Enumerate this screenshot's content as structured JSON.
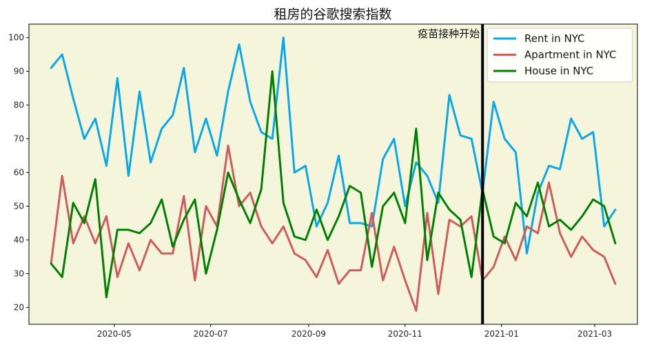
{
  "chart_data": {
    "type": "line",
    "title": "租房的谷歌搜索指数",
    "xlabel": "",
    "ylabel": "",
    "x_start": "2020-03-22",
    "x_step_days": 7,
    "xlim": [
      "2020-03-08",
      "2021-03-28"
    ],
    "ylim": [
      15,
      104
    ],
    "yticks": [
      20,
      30,
      40,
      50,
      60,
      70,
      80,
      90,
      100
    ],
    "xticks": [
      {
        "date": "2020-05-01",
        "label": "2020-05"
      },
      {
        "date": "2020-07-01",
        "label": "2020-07"
      },
      {
        "date": "2020-09-01",
        "label": "2020-09"
      },
      {
        "date": "2020-11-01",
        "label": "2020-11"
      },
      {
        "date": "2021-01-01",
        "label": "2021-01"
      },
      {
        "date": "2021-03-01",
        "label": "2021-03"
      }
    ],
    "grid": false,
    "legend": "top-right",
    "background": "#f5f5dc",
    "series": [
      {
        "name": "Rent in NYC",
        "color": "#0aa8e6",
        "values": [
          91,
          95,
          82,
          70,
          76,
          62,
          88,
          59,
          84,
          63,
          73,
          77,
          91,
          66,
          76,
          65,
          84,
          98,
          81,
          72,
          70,
          100,
          60,
          62,
          44,
          51,
          65,
          45,
          45,
          44,
          64,
          70,
          50,
          63,
          59,
          51,
          83,
          71,
          70,
          54,
          81,
          70,
          66,
          36,
          54,
          62,
          61,
          76,
          70,
          72,
          44,
          49
        ]
      },
      {
        "name": "Apartment in NYC",
        "color": "#cd5c5c",
        "values": [
          33,
          59,
          39,
          47,
          39,
          47,
          29,
          39,
          31,
          40,
          36,
          36,
          53,
          28,
          50,
          44,
          68,
          50,
          54,
          44,
          39,
          44,
          36,
          34,
          29,
          37,
          27,
          31,
          31,
          48,
          28,
          38,
          28,
          19,
          48,
          24,
          46,
          44,
          47,
          28,
          32,
          41,
          34,
          44,
          42,
          57,
          42,
          35,
          41,
          37,
          35,
          27
        ]
      },
      {
        "name": "House in NYC",
        "color": "#008000",
        "values": [
          33,
          29,
          51,
          45,
          58,
          23,
          43,
          43,
          42,
          45,
          52,
          38,
          46,
          52,
          30,
          43,
          60,
          52,
          45,
          55,
          90,
          51,
          41,
          40,
          49,
          40,
          47,
          56,
          54,
          32,
          50,
          54,
          45,
          73,
          34,
          54,
          49,
          46,
          29,
          55,
          41,
          39,
          51,
          47,
          57,
          44,
          46,
          43,
          47,
          52,
          50,
          39
        ]
      }
    ],
    "vline": {
      "date": "2020-12-20",
      "color": "#000000"
    },
    "annotation": {
      "text": "疫苗接种开始"
    }
  }
}
